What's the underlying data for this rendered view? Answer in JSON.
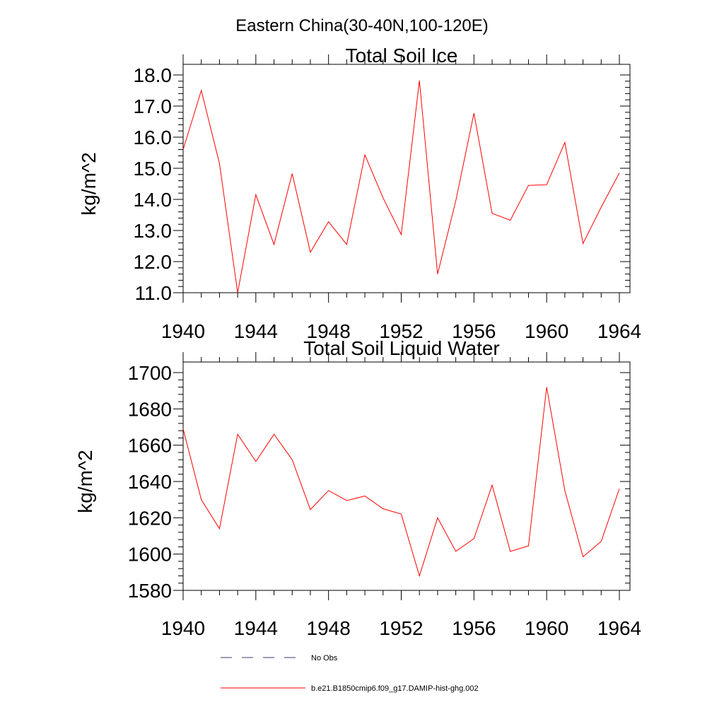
{
  "figure": {
    "suptitle": "Eastern China(30-40N,100-120E)"
  },
  "legend": {
    "entries": [
      {
        "label": "No Obs",
        "style": "dashed",
        "color": "#3a3a6e"
      },
      {
        "label": "b.e21.B1850cmip6.f09_g17.DAMIP-hist-ghg.002",
        "style": "solid",
        "color": "#ff0000"
      }
    ]
  },
  "chart_data": [
    {
      "type": "line",
      "title": "Total Soil Ice",
      "xlabel": "",
      "ylabel": "kg/m^2",
      "xlim": [
        1940,
        1964
      ],
      "ylim": [
        11.0,
        18.0
      ],
      "xticks": [
        1940,
        1944,
        1948,
        1952,
        1956,
        1960,
        1964
      ],
      "yticks": [
        11.0,
        12.0,
        13.0,
        14.0,
        15.0,
        16.0,
        17.0,
        18.0
      ],
      "ytick_labels": [
        "11.0",
        "12.0",
        "13.0",
        "14.0",
        "15.0",
        "16.0",
        "17.0",
        "18.0"
      ],
      "x_minor_step": 1,
      "y_minor_step": 0.2,
      "grid": false,
      "series": [
        {
          "name": "b.e21.B1850cmip6.f09_g17.DAMIP-hist-ghg.002",
          "color": "#ff0000",
          "x": [
            1940,
            1941,
            1942,
            1943,
            1944,
            1945,
            1946,
            1947,
            1948,
            1949,
            1950,
            1951,
            1952,
            1953,
            1954,
            1955,
            1956,
            1957,
            1958,
            1959,
            1960,
            1961,
            1962,
            1963,
            1964
          ],
          "values": [
            15.6,
            17.5,
            15.15,
            11.0,
            14.15,
            12.55,
            14.83,
            12.3,
            13.28,
            12.55,
            15.43,
            14.05,
            12.87,
            17.82,
            11.6,
            13.95,
            16.77,
            13.55,
            13.33,
            14.45,
            14.47,
            15.83,
            12.58,
            13.75,
            14.85
          ]
        }
      ]
    },
    {
      "type": "line",
      "title": "Total Soil Liquid Water",
      "xlabel": "",
      "ylabel": "kg/m^2",
      "xlim": [
        1940,
        1964
      ],
      "ylim": [
        1580,
        1700
      ],
      "xticks": [
        1940,
        1944,
        1948,
        1952,
        1956,
        1960,
        1964
      ],
      "yticks": [
        1580,
        1600,
        1620,
        1640,
        1660,
        1680,
        1700
      ],
      "ytick_labels": [
        "1580",
        "1600",
        "1620",
        "1640",
        "1660",
        "1680",
        "1700"
      ],
      "x_minor_step": 1,
      "y_minor_step": 4,
      "grid": false,
      "series": [
        {
          "name": "b.e21.B1850cmip6.f09_g17.DAMIP-hist-ghg.002",
          "color": "#ff0000",
          "x": [
            1940,
            1941,
            1942,
            1943,
            1944,
            1945,
            1946,
            1947,
            1948,
            1949,
            1950,
            1951,
            1952,
            1953,
            1954,
            1955,
            1956,
            1957,
            1958,
            1959,
            1960,
            1961,
            1962,
            1963,
            1964
          ],
          "values": [
            1669,
            1630,
            1614,
            1666,
            1651,
            1666,
            1652,
            1624.5,
            1635,
            1629.5,
            1632,
            1625,
            1622,
            1588,
            1620,
            1601.5,
            1608.5,
            1638,
            1601.5,
            1604.5,
            1692,
            1635,
            1598.5,
            1607,
            1636
          ]
        }
      ]
    }
  ]
}
